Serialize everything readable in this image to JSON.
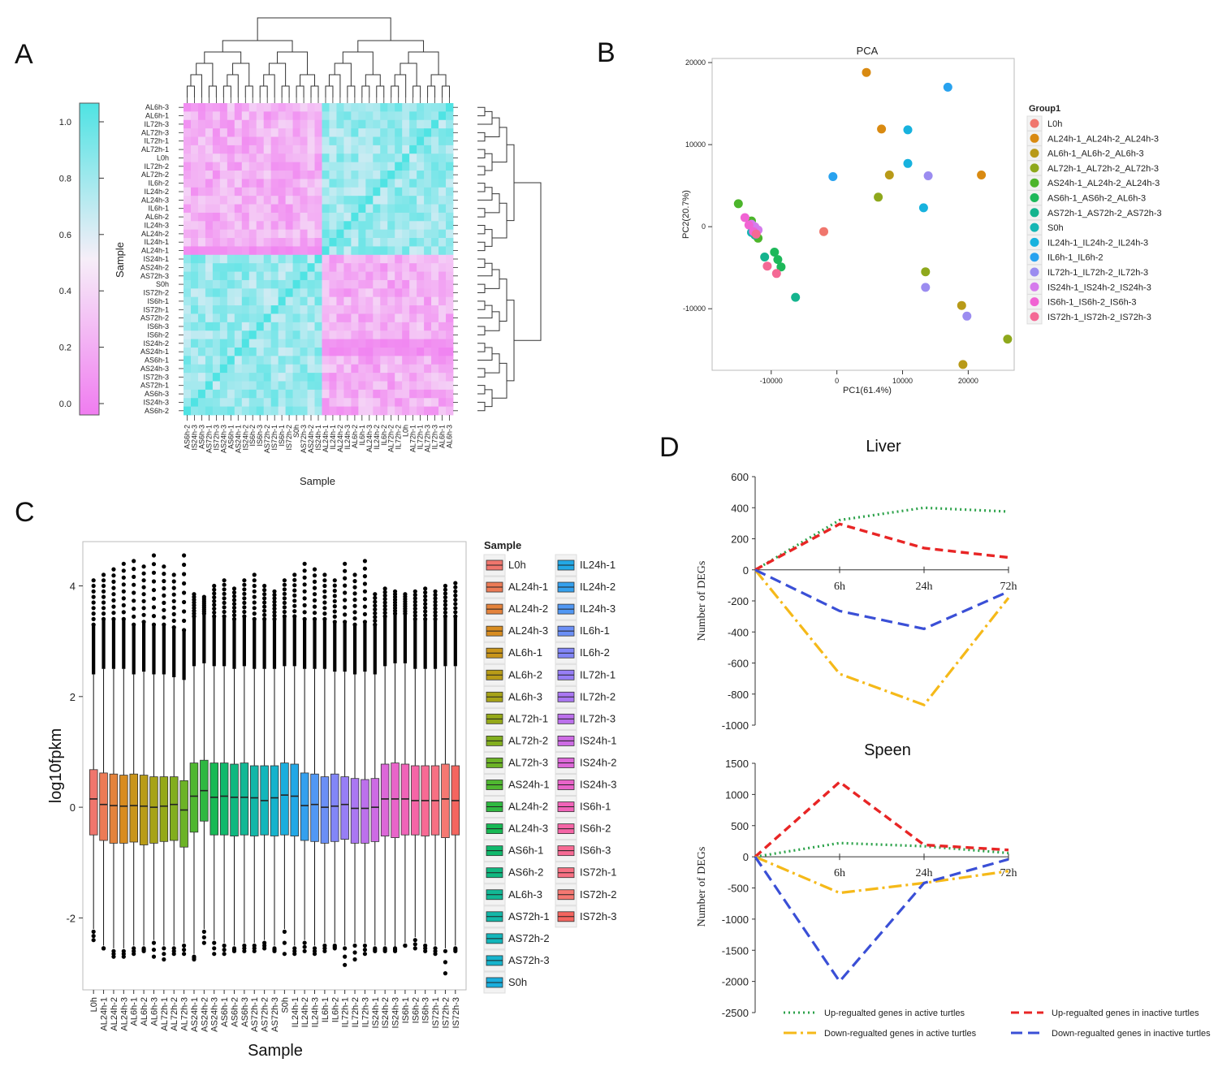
{
  "panels": {
    "a": "A",
    "b": "B",
    "c": "C",
    "d": "D"
  },
  "panel_a": {
    "xlabel": "Sample",
    "colorbar_label": "Sample",
    "colorbar_ticks": [
      "0.0",
      "0.2",
      "0.4",
      "0.6",
      "0.8",
      "1.0"
    ],
    "row_labels": [
      "AL6h-3",
      "AL6h-1",
      "IL72h-3",
      "AL72h-3",
      "IL72h-1",
      "AL72h-1",
      "L0h",
      "IL72h-2",
      "AL72h-2",
      "IL6h-2",
      "IL24h-2",
      "AL24h-3",
      "IL6h-1",
      "AL6h-2",
      "IL24h-3",
      "AL24h-2",
      "IL24h-1",
      "AL24h-1",
      "IS24h-1",
      "AS24h-2",
      "AS72h-3",
      "S0h",
      "IS72h-2",
      "IS6h-1",
      "IS72h-1",
      "AS72h-2",
      "IS6h-3",
      "IS6h-2",
      "IS24h-2",
      "AS24h-1",
      "AS6h-1",
      "AS24h-3",
      "IS72h-3",
      "AS72h-1",
      "AS6h-3",
      "IS24h-3",
      "AS6h-2"
    ],
    "col_labels": [
      "AS6h-2",
      "IS24h-3",
      "AS6h-3",
      "AS72h-1",
      "IS72h-3",
      "AS24h-3",
      "AS6h-1",
      "AS24h-1",
      "IS24h-2",
      "IS6h-2",
      "IS6h-3",
      "AS72h-2",
      "IS72h-1",
      "IS6h-1",
      "IS72h-2",
      "S0h",
      "AS72h-3",
      "AS24h-2",
      "IS24h-1",
      "AL24h-1",
      "IL24h-1",
      "AL24h-2",
      "IL24h-3",
      "AL6h-2",
      "IL6h-1",
      "AL24h-3",
      "IL24h-2",
      "IL6h-2",
      "AL72h-2",
      "IL72h-2",
      "L0h",
      "AL72h-1",
      "IL72h-1",
      "AL72h-3",
      "IL72h-3",
      "AL6h-1",
      "AL6h-3"
    ]
  },
  "panel_b": {
    "title": "PCA",
    "xlabel": "PC1(61.4%)",
    "ylabel": "PC2(20.7%)",
    "legend_title": "Group1",
    "x_ticks": [
      "-10000",
      "0",
      "10000",
      "20000"
    ],
    "y_ticks": [
      "20000",
      "10000",
      "0",
      "-10000"
    ],
    "groups": [
      {
        "name": "L0h",
        "color": "#f0766d"
      },
      {
        "name": "AL24h-1_AL24h-2_AL24h-3",
        "color": "#d98a11"
      },
      {
        "name": "AL6h-1_AL6h-2_AL6h-3",
        "color": "#b89a18"
      },
      {
        "name": "AL72h-1_AL72h-2_AL72h-3",
        "color": "#8ea81c"
      },
      {
        "name": "AS24h-1_AL24h-2_AL24h-3",
        "color": "#4cb52b"
      },
      {
        "name": "AS6h-1_AS6h-2_AL6h-3",
        "color": "#1eb85a"
      },
      {
        "name": "AS72h-1_AS72h-2_AS72h-3",
        "color": "#14b48e"
      },
      {
        "name": "S0h",
        "color": "#15b6b4"
      },
      {
        "name": "IL24h-1_IL24h-2_IL24h-3",
        "color": "#17b2de"
      },
      {
        "name": "IL6h-1_IL6h-2",
        "color": "#28a2ef"
      },
      {
        "name": "IL72h-1_IL72h-2_IL72h-3",
        "color": "#9b8cf0"
      },
      {
        "name": "IS24h-1_IS24h-2_IS24h-3",
        "color": "#d57bec"
      },
      {
        "name": "IS6h-1_IS6h-2_IS6h-3",
        "color": "#f163d3"
      },
      {
        "name": "IS72h-1_IS72h-2_IS72h-3",
        "color": "#f46995"
      }
    ]
  },
  "panel_c": {
    "xlabel": "Sample",
    "ylabel": "log10fpkm",
    "legend_title": "Sample",
    "y_ticks": [
      "4",
      "2",
      "0",
      "-2"
    ],
    "samples": [
      "L0h",
      "AL24h-1",
      "AL24h-2",
      "AL24h-3",
      "AL6h-1",
      "AL6h-2",
      "AL6h-3",
      "AL72h-1",
      "AL72h-2",
      "AL72h-3",
      "AS24h-1",
      "AL24h-2",
      "AL24h-3",
      "AS6h-1",
      "AS6h-2",
      "AL6h-3",
      "AS72h-1",
      "AS72h-2",
      "AS72h-3",
      "S0h",
      "IL24h-1",
      "IL24h-2",
      "IL24h-3",
      "IL6h-1",
      "IL6h-2",
      "IL72h-1",
      "IL72h-2",
      "IL72h-3",
      "IS24h-1",
      "IS24h-2",
      "IS24h-3",
      "IS6h-1",
      "IS6h-2",
      "IS6h-3",
      "IS72h-1",
      "IS72h-2",
      "IS72h-3"
    ],
    "axis_labels": [
      "L0h",
      "AL24h-1",
      "AL24h-2",
      "AL24h-3",
      "AL6h-1",
      "AL6h-2",
      "AL6h-3",
      "AL72h-1",
      "AL72h-2",
      "AL72h-3",
      "AS24h-1",
      "AS24h-2",
      "AS24h-3",
      "AS6h-1",
      "AS6h-2",
      "AS6h-3",
      "AS72h-1",
      "AS72h-2",
      "AS72h-3",
      "S0h",
      "IL24h-1",
      "IL24h-2",
      "IL24h-3",
      "IL6h-1",
      "IL6h-2",
      "IL72h-1",
      "IL72h-2",
      "IL72h-3",
      "IS24h-1",
      "IS24h-2",
      "IS24h-3",
      "IS6h-1",
      "IS6h-2",
      "IS6h-3",
      "IS72h-1",
      "IS72h-2",
      "IS72h-3"
    ]
  },
  "chart_data": [
    {
      "type": "heatmap",
      "title": "",
      "xlabel": "Sample",
      "legend": "Sample (color scale 0.0 - 1.0)",
      "clusters": [
        "AL24h/AL6h/AL72h/IL/L0h",
        "AS/IS/S0h"
      ]
    },
    {
      "type": "scatter",
      "title": "PCA",
      "xlabel": "PC1(61.4%)",
      "ylabel": "PC2(20.7%)",
      "xlim": [
        -19000,
        27000
      ],
      "ylim": [
        -17500,
        20500
      ],
      "points": [
        {
          "g": 0,
          "x": -2000,
          "y": -600
        },
        {
          "g": 1,
          "x": 4500,
          "y": 18800
        },
        {
          "g": 1,
          "x": 6800,
          "y": 11900
        },
        {
          "g": 1,
          "x": 22000,
          "y": 6300
        },
        {
          "g": 2,
          "x": 8000,
          "y": 6300
        },
        {
          "g": 2,
          "x": 19000,
          "y": -9600
        },
        {
          "g": 2,
          "x": 19200,
          "y": -16800
        },
        {
          "g": 3,
          "x": 6300,
          "y": 3600
        },
        {
          "g": 3,
          "x": 13500,
          "y": -5500
        },
        {
          "g": 3,
          "x": 26000,
          "y": -13700
        },
        {
          "g": 4,
          "x": -15000,
          "y": 2800
        },
        {
          "g": 4,
          "x": -13000,
          "y": 700
        },
        {
          "g": 4,
          "x": -12000,
          "y": -1400
        },
        {
          "g": 5,
          "x": -9500,
          "y": -3100
        },
        {
          "g": 5,
          "x": -8500,
          "y": -4900
        },
        {
          "g": 5,
          "x": -9000,
          "y": -4000
        },
        {
          "g": 6,
          "x": -6300,
          "y": -8600
        },
        {
          "g": 6,
          "x": -11000,
          "y": -3700
        },
        {
          "g": 6,
          "x": -12500,
          "y": -1000
        },
        {
          "g": 7,
          "x": -13000,
          "y": -700
        },
        {
          "g": 8,
          "x": 10800,
          "y": 11800
        },
        {
          "g": 8,
          "x": 10800,
          "y": 7700
        },
        {
          "g": 8,
          "x": 13200,
          "y": 2300
        },
        {
          "g": 9,
          "x": -600,
          "y": 6100
        },
        {
          "g": 9,
          "x": 16900,
          "y": 17000
        },
        {
          "g": 10,
          "x": 13900,
          "y": 6200
        },
        {
          "g": 10,
          "x": 13500,
          "y": -7400
        },
        {
          "g": 10,
          "x": 19800,
          "y": -10900
        },
        {
          "g": 11,
          "x": -12500,
          "y": 0
        },
        {
          "g": 11,
          "x": -12000,
          "y": -400
        },
        {
          "g": 11,
          "x": -13000,
          "y": 300
        },
        {
          "g": 12,
          "x": -14000,
          "y": 1100
        },
        {
          "g": 12,
          "x": -13400,
          "y": 200
        },
        {
          "g": 12,
          "x": -12700,
          "y": -600
        },
        {
          "g": 13,
          "x": -10600,
          "y": -4800
        },
        {
          "g": 13,
          "x": -9200,
          "y": -5700
        },
        {
          "g": 13,
          "x": -12300,
          "y": -900
        }
      ]
    },
    {
      "type": "bar",
      "subtype": "boxplot",
      "xlabel": "Sample",
      "ylabel": "log10fpkm",
      "ylim": [
        -3.3,
        4.8
      ],
      "series": [
        {
          "name": "log10fpkm",
          "median": [
            0.15,
            0.05,
            0.03,
            0.02,
            0.03,
            0.02,
            0.0,
            0.02,
            0.05,
            -0.05,
            0.2,
            0.3,
            0.18,
            0.2,
            0.18,
            0.18,
            0.17,
            0.12,
            0.17,
            0.22,
            0.2,
            0.03,
            0.05,
            0.0,
            0.02,
            0.05,
            -0.02,
            -0.02,
            0.0,
            0.15,
            0.15,
            0.15,
            0.12,
            0.12,
            0.12,
            0.15,
            0.12
          ],
          "q1": [
            -0.5,
            -0.6,
            -0.65,
            -0.65,
            -0.63,
            -0.68,
            -0.65,
            -0.62,
            -0.6,
            -0.72,
            -0.45,
            -0.25,
            -0.5,
            -0.5,
            -0.52,
            -0.5,
            -0.52,
            -0.5,
            -0.52,
            -0.5,
            -0.52,
            -0.6,
            -0.62,
            -0.65,
            -0.62,
            -0.58,
            -0.65,
            -0.65,
            -0.62,
            -0.52,
            -0.55,
            -0.5,
            -0.5,
            -0.52,
            -0.5,
            -0.55,
            -0.5
          ],
          "q3": [
            0.68,
            0.62,
            0.6,
            0.58,
            0.6,
            0.58,
            0.55,
            0.55,
            0.55,
            0.48,
            0.8,
            0.85,
            0.8,
            0.8,
            0.78,
            0.8,
            0.75,
            0.75,
            0.75,
            0.8,
            0.78,
            0.62,
            0.6,
            0.55,
            0.6,
            0.55,
            0.52,
            0.5,
            0.52,
            0.78,
            0.8,
            0.78,
            0.75,
            0.75,
            0.75,
            0.78,
            0.75
          ],
          "whisker_low": [
            -2.2,
            -2.5,
            -2.55,
            -2.55,
            -2.5,
            -2.5,
            -2.4,
            -2.5,
            -2.5,
            -2.45,
            -2.65,
            -2.2,
            -2.4,
            -2.45,
            -2.5,
            -2.45,
            -2.45,
            -2.4,
            -2.5,
            -2.2,
            -2.5,
            -2.4,
            -2.5,
            -2.45,
            -2.45,
            -2.5,
            -2.45,
            -2.45,
            -2.5,
            -2.5,
            -2.55,
            -2.45,
            -2.35,
            -2.45,
            -2.5,
            -2.55,
            -2.5
          ],
          "whisker_high": [
            2.4,
            2.5,
            2.5,
            2.5,
            2.4,
            2.45,
            2.4,
            2.4,
            2.35,
            2.3,
            2.55,
            2.6,
            2.55,
            2.55,
            2.5,
            2.55,
            2.5,
            2.5,
            2.5,
            2.55,
            2.55,
            2.5,
            2.5,
            2.5,
            2.45,
            2.45,
            2.4,
            2.45,
            2.4,
            2.55,
            2.6,
            2.6,
            2.5,
            2.5,
            2.5,
            2.55,
            2.55
          ],
          "max_outlier": [
            4.1,
            4.2,
            4.3,
            4.4,
            4.45,
            4.35,
            4.55,
            4.35,
            4.2,
            4.55,
            3.85,
            3.8,
            4.0,
            4.1,
            3.95,
            4.1,
            4.2,
            4.0,
            3.9,
            4.1,
            4.2,
            4.4,
            4.3,
            4.2,
            4.1,
            4.4,
            4.2,
            4.45,
            3.85,
            3.95,
            3.9,
            3.85,
            3.9,
            3.95,
            3.9,
            4.0,
            4.05
          ],
          "min_outlier": [
            -2.4,
            -2.55,
            -2.7,
            -2.7,
            -2.65,
            -2.6,
            -2.7,
            -2.75,
            -2.65,
            -2.65,
            -2.75,
            -2.45,
            -2.65,
            -2.65,
            -2.6,
            -2.6,
            -2.6,
            -2.55,
            -2.6,
            -2.65,
            -2.65,
            -2.6,
            -2.65,
            -2.6,
            -2.55,
            -2.85,
            -2.75,
            -2.65,
            -2.6,
            -2.6,
            -2.55,
            -2.5,
            -2.55,
            -2.6,
            -2.65,
            -3.0,
            -2.6
          ],
          "colors": [
            "#f0766d",
            "#ec7b56",
            "#e4833c",
            "#d88c20",
            "#c9951b",
            "#b99c17",
            "#a7a317",
            "#95a919",
            "#82ae1e",
            "#6cb326",
            "#4fb730",
            "#2fb841",
            "#18b955",
            "#10b96c",
            "#0fb880",
            "#12b895",
            "#13b7a8",
            "#13b6bb",
            "#16b3cc",
            "#1aaedd",
            "#22a8e6",
            "#34a0ee",
            "#5198f4",
            "#6b8ff6",
            "#8286f7",
            "#977ef6",
            "#aa77f2",
            "#bc70ec",
            "#cd6be4",
            "#dc67d8",
            "#e864c9",
            "#f063b8",
            "#f565a6",
            "#f76a94",
            "#f77083",
            "#f57872",
            "#f4655f"
          ]
        }
      ]
    },
    {
      "type": "line",
      "title": "Liver",
      "ylabel": "Number of DEGs",
      "categories": [
        "",
        "6h",
        "24h",
        "72h"
      ],
      "ylim": [
        -1000,
        600
      ],
      "series": [
        {
          "name": "Up-regualted genes in active turtles",
          "values": [
            0,
            320,
            400,
            375
          ]
        },
        {
          "name": "Up-regualted genes in inactive turtles",
          "values": [
            0,
            295,
            140,
            80
          ]
        },
        {
          "name": "Down-regualted genes in active turtles",
          "values": [
            0,
            -670,
            -870,
            -180
          ]
        },
        {
          "name": "Down-regualted genes in inactive turtles",
          "values": [
            0,
            -265,
            -380,
            -140
          ]
        }
      ]
    },
    {
      "type": "line",
      "title": "Speen",
      "ylabel": "Number of DEGs",
      "categories": [
        "",
        "6h",
        "24h",
        "72h"
      ],
      "ylim": [
        -2500,
        1500
      ],
      "series": [
        {
          "name": "Up-regualted genes in active turtles",
          "values": [
            0,
            220,
            170,
            60
          ]
        },
        {
          "name": "Up-regualted genes in inactive turtles",
          "values": [
            0,
            1200,
            190,
            110
          ]
        },
        {
          "name": "Down-regualted genes in active turtles",
          "values": [
            0,
            -580,
            -420,
            -230
          ]
        },
        {
          "name": "Down-regualted genes in inactive turtles",
          "values": [
            0,
            -2000,
            -420,
            -40
          ]
        }
      ]
    }
  ],
  "panel_d": {
    "liver_title": "Liver",
    "spleen_title": "Speen",
    "ylabel": "Number of DEGs",
    "liver_ticks": [
      "600",
      "400",
      "200",
      "0",
      "-200",
      "-400",
      "-600",
      "-800",
      "-1000"
    ],
    "spleen_ticks": [
      "1500",
      "1000",
      "500",
      "0",
      "-500",
      "-1000",
      "-1500",
      "-2000",
      "-2500"
    ],
    "x_labels": [
      "6h",
      "24h",
      "72h"
    ],
    "legend": [
      {
        "label": "Up-regualted genes in active turtles",
        "color": "#2ca24a"
      },
      {
        "label": "Up-regualted genes in inactive turtles",
        "color": "#e82525"
      },
      {
        "label": "Down-regualted genes in active turtles",
        "color": "#f5b919"
      },
      {
        "label": "Down-regualted genes in inactive turtles",
        "color": "#3a4fd6"
      }
    ]
  }
}
